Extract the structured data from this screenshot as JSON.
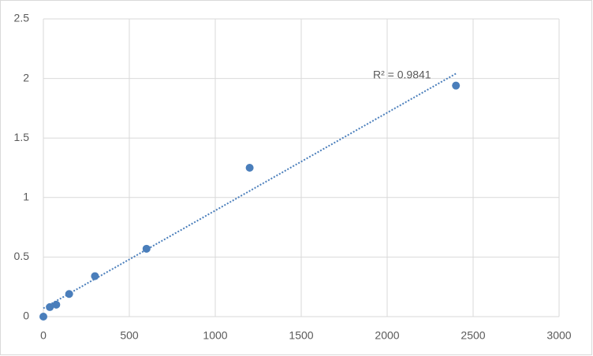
{
  "chart_data": {
    "type": "scatter",
    "x": [
      0,
      37.5,
      75,
      150,
      300,
      600,
      1200,
      2400
    ],
    "series": [
      {
        "color": "#4a7ebb",
        "values": [
          0,
          0.08,
          0.1,
          0.19,
          0.34,
          0.57,
          1.25,
          1.94
        ]
      }
    ],
    "xlim": [
      0,
      3000
    ],
    "xticks": [
      0,
      500,
      1000,
      1500,
      2000,
      2500,
      3000
    ],
    "ylim": [
      0,
      2.5
    ],
    "yticks": [
      0,
      0.5,
      1,
      1.5,
      2,
      2.5
    ],
    "grid": true,
    "trendline": "linear",
    "annotation": "R² = 0.9841"
  }
}
